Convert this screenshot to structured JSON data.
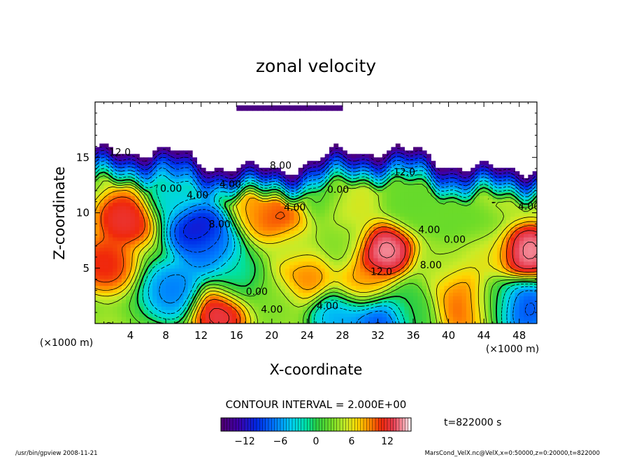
{
  "chart_data": {
    "type": "heatmap",
    "title": "zonal velocity",
    "xlabel": "X-coordinate",
    "ylabel": "Z-coordinate",
    "x_unit": "(×1000 m)",
    "y_unit": "(×1000 m)",
    "xlim": [
      0,
      50
    ],
    "ylim": [
      0,
      20
    ],
    "x_ticks": [
      "4",
      "8",
      "12",
      "16",
      "20",
      "24",
      "28",
      "32",
      "36",
      "40",
      "44",
      "48"
    ],
    "y_ticks": [
      "5",
      "10",
      "15"
    ],
    "contour_interval_text": "CONTOUR INTERVAL = 2.000E+00",
    "time_text": "t=822000 s",
    "colorbar": {
      "min": -16,
      "max": 16,
      "ticks": [
        "−12",
        "−6",
        "0",
        "6",
        "12"
      ]
    },
    "contour_labels": [
      {
        "x": 2.8,
        "z": 15.5,
        "text": "12.0"
      },
      {
        "x": 21.0,
        "z": 14.3,
        "text": "8.00"
      },
      {
        "x": 15.3,
        "z": 12.6,
        "text": "4.00"
      },
      {
        "x": 8.6,
        "z": 12.2,
        "text": "0.00"
      },
      {
        "x": 11.6,
        "z": 11.6,
        "text": "4.00"
      },
      {
        "x": 35.0,
        "z": 13.7,
        "text": "12.0"
      },
      {
        "x": 27.5,
        "z": 12.1,
        "text": "0.00"
      },
      {
        "x": 22.6,
        "z": 10.5,
        "text": "4.00"
      },
      {
        "x": 14.1,
        "z": 9.0,
        "text": "8.00"
      },
      {
        "x": 37.8,
        "z": 8.5,
        "text": "4.00"
      },
      {
        "x": 40.7,
        "z": 7.6,
        "text": "0.00"
      },
      {
        "x": 38.0,
        "z": 5.3,
        "text": "8.00"
      },
      {
        "x": 32.4,
        "z": 4.7,
        "text": "12.0"
      },
      {
        "x": 18.3,
        "z": 2.9,
        "text": "0.00"
      },
      {
        "x": 20.0,
        "z": 1.3,
        "text": "4.00"
      },
      {
        "x": 26.3,
        "z": 1.6,
        "text": "4.00"
      },
      {
        "x": 49.1,
        "z": 10.6,
        "text": "4.00"
      }
    ],
    "features": [
      {
        "x": 3.5,
        "z": 9.5,
        "u": 13
      },
      {
        "x": 1.0,
        "z": 5.5,
        "u": 12
      },
      {
        "x": 9.0,
        "z": 3.0,
        "u": -8
      },
      {
        "x": 11.5,
        "z": 8.5,
        "u": -13
      },
      {
        "x": 13.0,
        "z": 6.5,
        "u": -8
      },
      {
        "x": 9.0,
        "z": 11.5,
        "u": -4
      },
      {
        "x": 14.0,
        "z": 1.2,
        "u": 14
      },
      {
        "x": 20.0,
        "z": 2.5,
        "u": 3
      },
      {
        "x": 19.5,
        "z": 10.5,
        "u": 9
      },
      {
        "x": 21.0,
        "z": 9.5,
        "u": 12
      },
      {
        "x": 22.5,
        "z": 7.0,
        "u": 4
      },
      {
        "x": 23.5,
        "z": 4.5,
        "u": 10
      },
      {
        "x": 28.0,
        "z": 7.5,
        "u": 3
      },
      {
        "x": 28.5,
        "z": 10.5,
        "u": 6
      },
      {
        "x": 32.5,
        "z": 6.5,
        "u": 16
      },
      {
        "x": 30.5,
        "z": 3.5,
        "u": 9
      },
      {
        "x": 28.0,
        "z": 0.5,
        "u": -6
      },
      {
        "x": 32.0,
        "z": 0.3,
        "u": -10
      },
      {
        "x": 39.5,
        "z": 5.0,
        "u": 4
      },
      {
        "x": 41.0,
        "z": 3.0,
        "u": 10
      },
      {
        "x": 42.0,
        "z": 1.5,
        "u": 11
      },
      {
        "x": 43.5,
        "z": 9.0,
        "u": 2
      },
      {
        "x": 44.5,
        "z": 6.5,
        "u": 6
      },
      {
        "x": 48.5,
        "z": 6.5,
        "u": 16
      },
      {
        "x": 46.5,
        "z": 11.5,
        "u": 5
      },
      {
        "x": 45.0,
        "z": 2.0,
        "u": 0
      },
      {
        "x": 48.5,
        "z": 1.5,
        "u": -10
      },
      {
        "x": 36.5,
        "z": 11.0,
        "u": 2
      },
      {
        "x": 25.5,
        "z": 11.5,
        "u": 1
      },
      {
        "x": 36.0,
        "z": 1.5,
        "u": 0
      },
      {
        "x": 16.0,
        "z": 4.0,
        "u": -2
      }
    ]
  },
  "footer": {
    "left": "/usr/bin/gpview  2008-11-21",
    "right": "MarsCond_VelX.nc@VelX,x=0:50000,z=0:20000,t=822000"
  }
}
